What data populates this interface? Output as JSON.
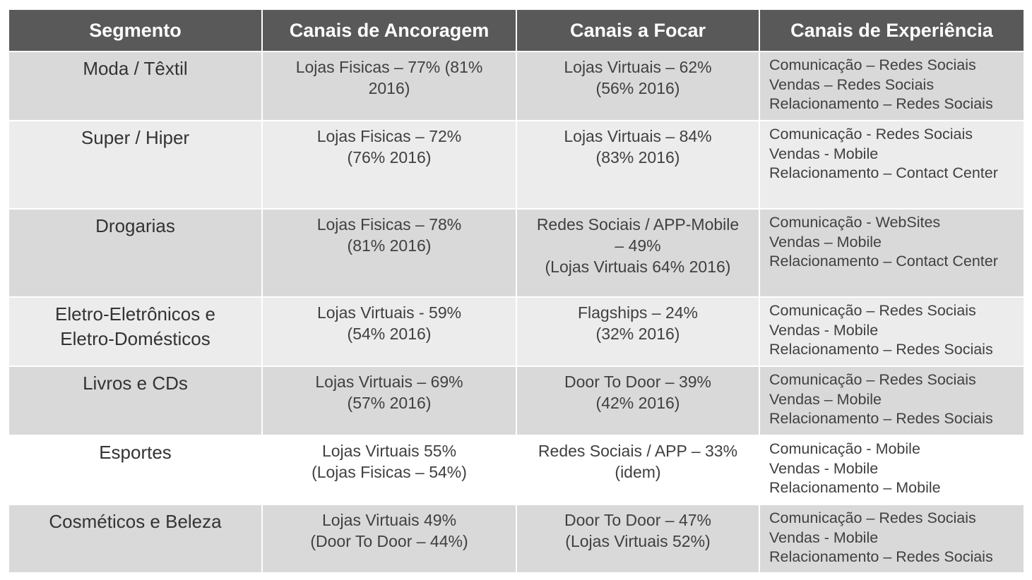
{
  "headers": {
    "segmento": "Segmento",
    "ancoragem": "Canais de Ancoragem",
    "focar": "Canais a Focar",
    "experiencia": "Canais de Experiência"
  },
  "rows": [
    {
      "segment": [
        "Moda / Têxtil"
      ],
      "anchor": [
        "Lojas Fisicas – 77% (81%",
        "2016)"
      ],
      "focus": [
        "Lojas Virtuais – 62%",
        "(56% 2016)"
      ],
      "experience": [
        "Comunicação – Redes Sociais",
        "Vendas – Redes Sociais",
        "Relacionamento – Redes Sociais"
      ]
    },
    {
      "segment": [
        "Super / Hiper"
      ],
      "anchor": [
        "Lojas Fisicas – 72%",
        "(76% 2016)"
      ],
      "focus": [
        "Lojas Virtuais – 84%",
        "(83% 2016)"
      ],
      "experience": [
        "Comunicação - Redes Sociais",
        "Vendas - Mobile",
        "Relacionamento – Contact Center"
      ]
    },
    {
      "segment": [
        "Drogarias"
      ],
      "anchor": [
        "Lojas Fisicas – 78%",
        "(81% 2016)"
      ],
      "focus": [
        "Redes Sociais / APP-Mobile",
        "– 49%",
        "(Lojas Virtuais 64% 2016)"
      ],
      "experience": [
        "Comunicação - WebSites",
        "Vendas – Mobile",
        "Relacionamento – Contact Center"
      ]
    },
    {
      "segment": [
        "Eletro-Eletrônicos e",
        "Eletro-Domésticos"
      ],
      "anchor": [
        "Lojas Virtuais - 59%",
        "(54% 2016)"
      ],
      "focus": [
        "Flagships – 24%",
        "(32% 2016)"
      ],
      "experience": [
        "Comunicação – Redes Sociais",
        "Vendas - Mobile",
        "Relacionamento – Redes Sociais"
      ]
    },
    {
      "segment": [
        "Livros e CDs"
      ],
      "anchor": [
        "Lojas Virtuais – 69%",
        "(57% 2016)"
      ],
      "focus": [
        "Door To Door – 39%",
        "(42% 2016)"
      ],
      "experience": [
        "Comunicação – Redes Sociais",
        "Vendas – Mobile",
        "Relacionamento – Redes Sociais"
      ]
    },
    {
      "segment": [
        "Esportes"
      ],
      "anchor": [
        "Lojas Virtuais 55%",
        "(Lojas Fisicas – 54%)"
      ],
      "focus": [
        "Redes Sociais / APP – 33%",
        "(idem)"
      ],
      "experience": [
        "Comunicação - Mobile",
        "Vendas - Mobile",
        "Relacionamento – Mobile"
      ]
    },
    {
      "segment": [
        "Cosméticos e Beleza"
      ],
      "anchor": [
        "Lojas Virtuais 49%",
        "(Door To Door – 44%)"
      ],
      "focus": [
        "Door To Door – 47%",
        "(Lojas Virtuais 52%)"
      ],
      "experience": [
        "Comunicação – Redes Sociais",
        "Vendas - Mobile",
        "Relacionamento – Redes Sociais"
      ]
    }
  ],
  "colors": {
    "header_bg": "#595959",
    "row_dark": "#d9d9d9",
    "row_light": "#ececec",
    "row_white": "#ffffff"
  }
}
